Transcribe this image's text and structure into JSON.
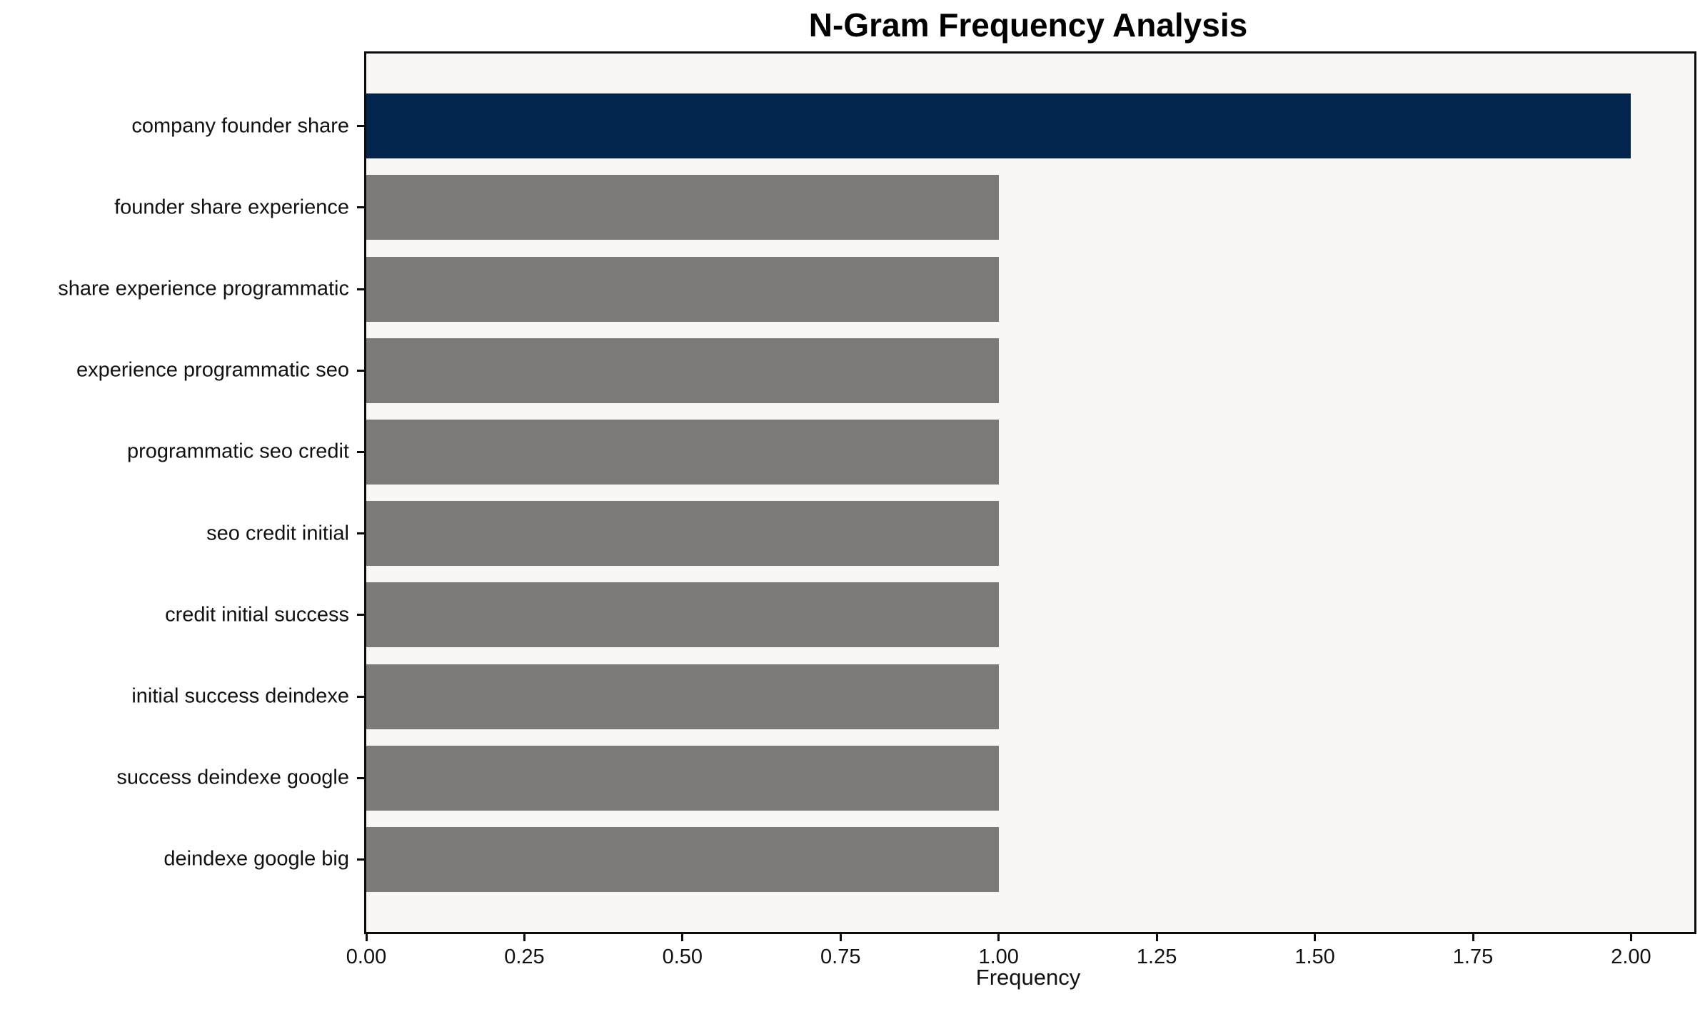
{
  "chart_data": {
    "type": "bar",
    "orientation": "horizontal",
    "title": "N-Gram Frequency Analysis",
    "xlabel": "Frequency",
    "ylabel": "",
    "categories": [
      "company founder share",
      "founder share experience",
      "share experience programmatic",
      "experience programmatic seo",
      "programmatic seo credit",
      "seo credit initial",
      "credit initial success",
      "initial success deindexe",
      "success deindexe google",
      "deindexe google big"
    ],
    "values": [
      2.0,
      1.0,
      1.0,
      1.0,
      1.0,
      1.0,
      1.0,
      1.0,
      1.0,
      1.0
    ],
    "bar_colors": [
      "#02244d",
      "#7b7a77",
      "#7b7a77",
      "#7b7a77",
      "#7b7a77",
      "#7b7a77",
      "#7b7a77",
      "#7b7a77",
      "#7b7a77",
      "#7b7a77"
    ],
    "highlight_color": "#02244d",
    "default_bar_color": "#7b7a77",
    "plot_background": "#f8f7f6",
    "spine_color": "#0c0c0c",
    "xlim": [
      0,
      2.1
    ],
    "xticks": [
      0.0,
      0.25,
      0.5,
      0.75,
      1.0,
      1.25,
      1.5,
      1.75,
      2.0
    ],
    "xtick_labels": [
      "0.00",
      "0.25",
      "0.50",
      "0.75",
      "1.00",
      "1.25",
      "1.50",
      "1.75",
      "2.00"
    ],
    "grid": false,
    "legend": "none"
  }
}
